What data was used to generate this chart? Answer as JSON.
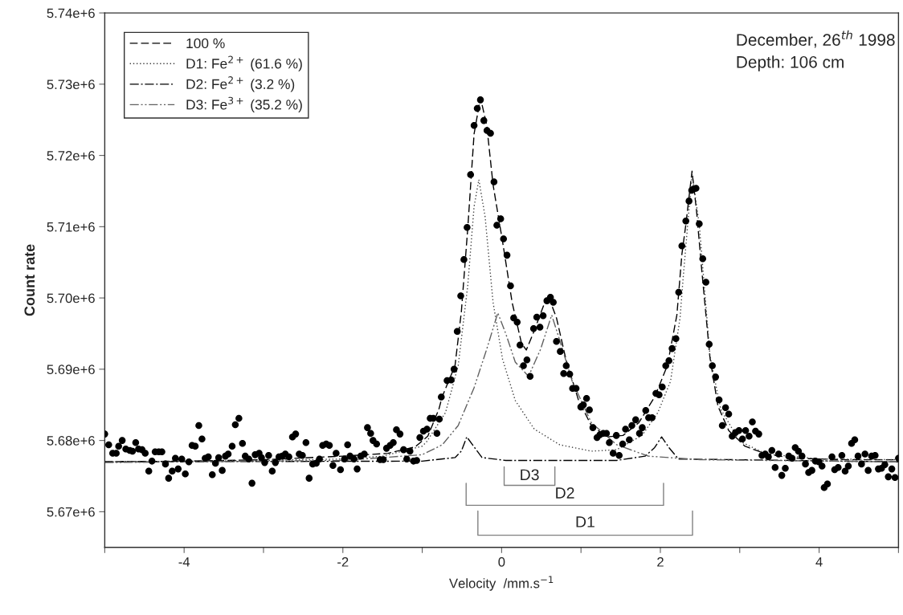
{
  "chart_data": {
    "type": "scatter",
    "xlabel": "Velocity  /mm.s$^{−1}$",
    "ylabel": "Count rate",
    "xlim": [
      -5,
      5
    ],
    "ylim": [
      5665000,
      5740000
    ],
    "xticks": [
      {
        "value": -5,
        "label": null
      },
      {
        "value": -4,
        "label": "-4"
      },
      {
        "value": -3,
        "label": null
      },
      {
        "value": -2,
        "label": "-2"
      },
      {
        "value": -1,
        "label": null
      },
      0,
      {
        "value": 1,
        "label": null
      },
      2,
      {
        "value": 3,
        "label": null
      },
      4,
      {
        "value": 5,
        "label": null
      }
    ],
    "yticks": [
      {
        "value": 5670000,
        "label": "5.67e+6"
      },
      {
        "value": 5680000,
        "label": "5.68e+6"
      },
      {
        "value": 5690000,
        "label": "5.69e+6"
      },
      {
        "value": 5700000,
        "label": "5.70e+6"
      },
      {
        "value": 5710000,
        "label": "5.71e+6"
      },
      {
        "value": 5720000,
        "label": "5.72e+6"
      },
      {
        "value": 5730000,
        "label": "5.73e+6"
      },
      {
        "value": 5740000,
        "label": "5.74e+6"
      }
    ],
    "grid": false,
    "legend": "top left",
    "annotations": [
      "December, 26$^{th}$ 1998",
      "Depth: 106 cm",
      "D3",
      "D2",
      "D1"
    ],
    "series": [
      {
        "color": "#000000",
        "marker": "circle",
        "x": [
          -5.0,
          -4.95,
          -4.9,
          -4.855,
          -4.825,
          -4.78,
          -4.735,
          -4.685,
          -4.65,
          -4.61,
          -4.575,
          -4.53,
          -4.49,
          -4.445,
          -4.405,
          -4.365,
          -4.32,
          -4.28,
          -4.235,
          -4.195,
          -4.15,
          -4.11,
          -4.075,
          -4.03,
          -3.985,
          -3.94,
          -3.9,
          -3.86,
          -3.815,
          -3.775,
          -3.735,
          -3.695,
          -3.645,
          -3.605,
          -3.565,
          -3.52,
          -3.48,
          -3.445,
          -3.395,
          -3.355,
          -3.31,
          -3.265,
          -3.23,
          -3.185,
          -3.145,
          -3.105,
          -3.055,
          -3.025,
          -2.985,
          -2.935,
          -2.89,
          -2.85,
          -2.805,
          -2.765,
          -2.725,
          -2.68,
          -2.635,
          -2.595,
          -2.55,
          -2.51,
          -2.465,
          -2.425,
          -2.38,
          -2.335,
          -2.295,
          -2.255,
          -2.21,
          -2.17,
          -2.125,
          -2.085,
          -2.03,
          -1.98,
          -1.94,
          -1.91,
          -1.86,
          -1.82,
          -1.775,
          -1.73,
          -1.69,
          -1.65,
          -1.62,
          -1.575,
          -1.53,
          -1.49,
          -1.45,
          -1.405,
          -1.365,
          -1.325,
          -1.28,
          -1.235,
          -1.195,
          -1.155,
          -1.11,
          -1.07,
          -1.03,
          -0.985,
          -0.94,
          -0.9,
          -0.86,
          -0.815,
          -0.785,
          -0.76,
          -0.687,
          -0.635,
          -0.599,
          -0.559,
          -0.515,
          -0.475,
          -0.435,
          -0.391,
          -0.347,
          -0.307,
          -0.267,
          -0.224,
          -0.184,
          -0.14,
          -0.096,
          -0.06,
          -0.012,
          0.024,
          0.068,
          0.112,
          0.152,
          0.196,
          0.232,
          0.275,
          0.319,
          0.359,
          0.403,
          0.443,
          0.483,
          0.523,
          0.571,
          0.615,
          0.651,
          0.691,
          0.739,
          0.782,
          0.814,
          0.858,
          0.894,
          0.938,
          0.998,
          1.03,
          1.07,
          1.106,
          1.15,
          1.202,
          1.238,
          1.281,
          1.321,
          1.357,
          1.405,
          1.445,
          1.481,
          1.525,
          1.561,
          1.609,
          1.641,
          1.689,
          1.737,
          1.772,
          1.816,
          1.852,
          1.896,
          1.944,
          1.984,
          2.024,
          2.068,
          2.108,
          2.148,
          2.196,
          2.231,
          2.271,
          2.321,
          2.361,
          2.395,
          2.422,
          2.449,
          2.49,
          2.534,
          2.574,
          2.615,
          2.655,
          2.696,
          2.74,
          2.78,
          2.821,
          2.861,
          2.905,
          2.946,
          2.99,
          3.034,
          3.074,
          3.118,
          3.159,
          3.199,
          3.24,
          3.28,
          3.321,
          3.361,
          3.405,
          3.446,
          3.49,
          3.53,
          3.574,
          3.618,
          3.659,
          3.699,
          3.74,
          3.784,
          3.828,
          3.868,
          3.909,
          3.953,
          3.997,
          4.037,
          4.064,
          4.105,
          4.162,
          4.196,
          4.24,
          4.287,
          4.328,
          4.368,
          4.409,
          4.449,
          4.49,
          4.534,
          4.578,
          4.618,
          4.662,
          4.706,
          4.747,
          4.787,
          4.828,
          4.872,
          4.916,
          4.956,
          5.0
        ],
        "values": [
          5680900,
          5679400,
          5678200,
          5678200,
          5679200,
          5680000,
          5678800,
          5678600,
          5678500,
          5679700,
          5678800,
          5678700,
          5678200,
          5675700,
          5677100,
          5678400,
          5678400,
          5678400,
          5676700,
          5674700,
          5675700,
          5677500,
          5676000,
          5677400,
          5675300,
          5677000,
          5679300,
          5679200,
          5682100,
          5680200,
          5677500,
          5677700,
          5675200,
          5676800,
          5677600,
          5675800,
          5677800,
          5678100,
          5679200,
          5682200,
          5683100,
          5679600,
          5677800,
          5677400,
          5674000,
          5678000,
          5678200,
          5677600,
          5676900,
          5677900,
          5675700,
          5676900,
          5677700,
          5677800,
          5678100,
          5677700,
          5680500,
          5680900,
          5678100,
          5677900,
          5679700,
          5674700,
          5676700,
          5676800,
          5677400,
          5679300,
          5679500,
          5679300,
          5676500,
          5678200,
          5675900,
          5677400,
          5679400,
          5677800,
          5677400,
          5676000,
          5677800,
          5678100,
          5681800,
          5681000,
          5680000,
          5679500,
          5677300,
          5677300,
          5678900,
          5679300,
          5679700,
          5681500,
          5680900,
          5678700,
          5677400,
          5678500,
          5677100,
          5677200,
          5680400,
          5681300,
          5681600,
          5683100,
          5683100,
          5681000,
          5683000,
          5686100,
          5688400,
          5688500,
          5690000,
          5695300,
          5700300,
          5705400,
          5709900,
          5717300,
          5724200,
          5726600,
          5727800,
          5724900,
          5723500,
          5723100,
          5716300,
          5710200,
          5711100,
          5708300,
          5706000,
          5701700,
          5697200,
          5696600,
          5693400,
          5690500,
          5691300,
          5689000,
          5695700,
          5697300,
          5695900,
          5697500,
          5699600,
          5700100,
          5699400,
          5693900,
          5692500,
          5689400,
          5690500,
          5689300,
          5687300,
          5687300,
          5684700,
          5685000,
          5685900,
          5684300,
          5681800,
          5680400,
          5680800,
          5681000,
          5681000,
          5679700,
          5678200,
          5680700,
          5677900,
          5679500,
          5681600,
          5680100,
          5682100,
          5682900,
          5681000,
          5681800,
          5684200,
          5683200,
          5683200,
          5686600,
          5686400,
          5687500,
          5690500,
          5691200,
          5692900,
          5694300,
          5700800,
          5707300,
          5710800,
          5713600,
          5715100,
          5715300,
          5715400,
          5710400,
          5705500,
          5702200,
          5693500,
          5690500,
          5688900,
          5685700,
          5682100,
          5684600,
          5683700,
          5680600,
          5681100,
          5681400,
          5680200,
          5681400,
          5680600,
          5682600,
          5681300,
          5680900,
          5677900,
          5678100,
          5677700,
          5678600,
          5676200,
          5678100,
          5675100,
          5676100,
          5677800,
          5677500,
          5679000,
          5678500,
          5677800,
          5676700,
          5675500,
          5675800,
          5677100,
          5677000,
          5676400,
          5673400,
          5673900,
          5677700,
          5675900,
          5676200,
          5677900,
          5675700,
          5676400,
          5679600,
          5680100,
          5677800,
          5676700,
          5678100,
          5675800,
          5677800,
          5677900,
          5676000,
          5676100,
          5676600,
          5674900,
          5676000,
          5674800,
          5677500
        ]
      },
      {
        "type": "line",
        "name": "100 %",
        "color": "#000000",
        "line_style": "dashed",
        "x": [
          -5,
          -4,
          -3,
          -2,
          -1.43,
          -1.09,
          -0.93,
          -0.79,
          -0.75,
          -0.587,
          -0.507,
          -0.427,
          -0.347,
          -0.267,
          -0.188,
          -0.108,
          0.012,
          0.132,
          0.251,
          0.311,
          0.411,
          0.531,
          0.611,
          0.691,
          0.81,
          0.97,
          1.13,
          1.329,
          1.529,
          1.729,
          1.928,
          2.088,
          2.208,
          2.271,
          2.321,
          2.399,
          2.456,
          2.524,
          2.625,
          2.726,
          2.861,
          3.064,
          3.334,
          3.672,
          4.348,
          5.0
        ],
        "values": [
          5677000,
          5677100,
          5677300,
          5677800,
          5678200,
          5679100,
          5680600,
          5684400,
          5686100,
          5690500,
          5698100,
          5709700,
          5723000,
          5728100,
          5724300,
          5715900,
          5707900,
          5699400,
          5693600,
          5692700,
          5695400,
          5699000,
          5699600,
          5697200,
          5691400,
          5685600,
          5682100,
          5680500,
          5680700,
          5682500,
          5686100,
          5690500,
          5697600,
          5706100,
          5710300,
          5717800,
          5712200,
          5703600,
          5691600,
          5684800,
          5681400,
          5679200,
          5678100,
          5677500,
          5677300,
          5677300
        ]
      },
      {
        "type": "line",
        "name": "D1: Fe$^{2+}$ (61.6 %)",
        "color": "#404040",
        "line_style": "dotted",
        "x": [
          -5,
          -3,
          -2,
          -1.5,
          -1.0,
          -0.946,
          -0.707,
          -0.547,
          -0.427,
          -0.347,
          -0.287,
          -0.208,
          -0.108,
          0.012,
          0.172,
          0.411,
          0.731,
          1.13,
          1.449,
          1.768,
          1.968,
          2.128,
          2.248,
          2.287,
          2.399,
          2.49,
          2.625,
          2.76,
          2.997,
          3.334,
          4.01,
          5.0
        ],
        "values": [
          5677000,
          5677200,
          5677400,
          5677800,
          5679200,
          5679800,
          5683900,
          5690500,
          5701700,
          5712800,
          5716600,
          5711400,
          5699400,
          5691400,
          5685600,
          5681600,
          5679400,
          5678500,
          5678700,
          5680700,
          5683900,
          5688300,
          5697200,
          5702800,
          5717400,
          5710300,
          5691900,
          5684400,
          5679900,
          5678100,
          5677400,
          5677300
        ]
      },
      {
        "type": "line",
        "name": "D2: Fe$^{2+}$ (3.2 %)",
        "color": "#000000",
        "line_style": "dashdot",
        "x": [
          -5,
          -1.0,
          -0.587,
          -0.507,
          -0.439,
          -0.367,
          -0.247,
          0.052,
          1.449,
          1.808,
          1.928,
          2.016,
          2.108,
          2.228,
          5.0
        ],
        "values": [
          5677000,
          5677100,
          5677600,
          5678500,
          5680500,
          5679400,
          5677600,
          5677200,
          5677200,
          5677800,
          5679000,
          5680500,
          5679000,
          5677400,
          5677000
        ]
      },
      {
        "type": "line",
        "name": "D3: Fe$^{3+}$ (35.2 %)",
        "color": "#606060",
        "line_style": "dashdotdot",
        "x": [
          -5,
          -2,
          -1.0,
          -0.747,
          -0.547,
          -0.347,
          -0.188,
          -0.048,
          0.052,
          0.172,
          0.339,
          0.491,
          0.631,
          0.731,
          0.89,
          1.13,
          1.449,
          1.848,
          2.5,
          5.0
        ],
        "values": [
          5676900,
          5677200,
          5678000,
          5679400,
          5682100,
          5687400,
          5692800,
          5697900,
          5695000,
          5691000,
          5689000,
          5692800,
          5697600,
          5694100,
          5688300,
          5682500,
          5679400,
          5677800,
          5677300,
          5677000
        ]
      },
      {
        "type": "line",
        "color": "#808080",
        "line_style": "solid",
        "x": [
          0.032,
          0.032,
          0.671,
          0.671
        ],
        "values": [
          5676300,
          5673700,
          5673700,
          5676300
        ]
      },
      {
        "type": "line",
        "color": "#808080",
        "line_style": "solid",
        "x": [
          -0.447,
          -0.447,
          2.04,
          2.04
        ],
        "values": [
          5674000,
          5670900,
          5670900,
          5674000
        ]
      },
      {
        "type": "line",
        "color": "#808080",
        "line_style": "solid",
        "x": [
          -0.299,
          -0.299,
          2.405,
          2.405
        ],
        "values": [
          5670100,
          5666700,
          5666700,
          5670100
        ]
      }
    ]
  }
}
